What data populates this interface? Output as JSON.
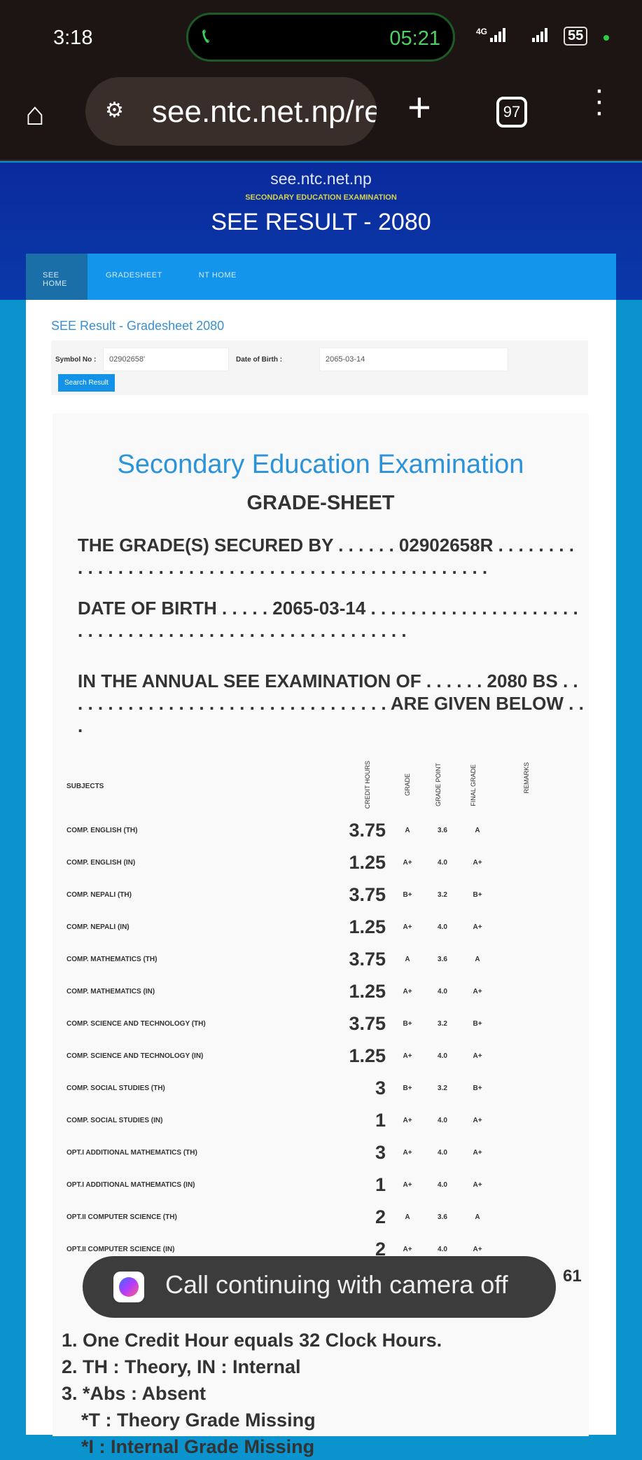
{
  "status_bar": {
    "time": "3:18",
    "call_timer": "05:21",
    "network": "4G",
    "battery": "55"
  },
  "browser": {
    "url": "see.ntc.net.np/re",
    "tab_count": "97"
  },
  "header": {
    "site": "see.ntc.net.np",
    "subtitle": "SECONDARY EDUCATION EXAMINATION",
    "title": "SEE RESULT - 2080"
  },
  "nav": {
    "items": [
      "SEE HOME",
      "GRADESHEET",
      "NT HOME"
    ]
  },
  "form": {
    "title": "SEE Result - Gradesheet 2080",
    "symbol_label": "Symbol No :",
    "symbol_value": "02902658'",
    "dob_label": "Date of Birth :",
    "dob_value": "2065-03-14",
    "search_label": "Search Result"
  },
  "sheet": {
    "title": "Secondary Education Examination",
    "subtitle": "GRADE-SHEET",
    "secured_by": "THE GRADE(S) SECURED BY . . . . . . 02902658R . . . . . . . . . . . . . . . . . . . . . . . . . . . . . . . . . . . . . . . . . . . . . . . . .",
    "dob": "DATE OF BIRTH . . . . . 2065-03-14 . . . . . . . . . . . . . . . . . . . . . . . . . . . . . . . . . . . . . . . . . . . . . . . . . . . . . .",
    "exam": "IN THE ANNUAL SEE EXAMINATION OF . . . . . . 2080 BS . . . . . . . . . . . . . . . . . . . . . . . . . . . . . . . . . ARE GIVEN BELOW . . .",
    "columns": [
      "SUBJECTS",
      "CREDIT HOURS",
      "GRADE",
      "GRADE POINT",
      "FINAL GRADE",
      "REMARKS"
    ],
    "rows": [
      [
        "COMP. ENGLISH (TH)",
        "3.75",
        "A",
        "3.6",
        "A"
      ],
      [
        "COMP. ENGLISH (IN)",
        "1.25",
        "A+",
        "4.0",
        "A+"
      ],
      [
        "COMP. NEPALI (TH)",
        "3.75",
        "B+",
        "3.2",
        "B+"
      ],
      [
        "COMP. NEPALI (IN)",
        "1.25",
        "A+",
        "4.0",
        "A+"
      ],
      [
        "COMP. MATHEMATICS (TH)",
        "3.75",
        "A",
        "3.6",
        "A"
      ],
      [
        "COMP. MATHEMATICS (IN)",
        "1.25",
        "A+",
        "4.0",
        "A+"
      ],
      [
        "COMP. SCIENCE AND TECHNOLOGY (TH)",
        "3.75",
        "B+",
        "3.2",
        "B+"
      ],
      [
        "COMP. SCIENCE AND TECHNOLOGY (IN)",
        "1.25",
        "A+",
        "4.0",
        "A+"
      ],
      [
        "COMP. SOCIAL STUDIES (TH)",
        "3",
        "B+",
        "3.2",
        "B+"
      ],
      [
        "COMP. SOCIAL STUDIES (IN)",
        "1",
        "A+",
        "4.0",
        "A+"
      ],
      [
        "OPT.I ADDITIONAL MATHEMATICS (TH)",
        "3",
        "A+",
        "4.0",
        "A+"
      ],
      [
        "OPT.I ADDITIONAL MATHEMATICS (IN)",
        "1",
        "A+",
        "4.0",
        "A+"
      ],
      [
        "OPT.II COMPUTER SCIENCE (TH)",
        "2",
        "A",
        "3.6",
        "A"
      ],
      [
        "OPT.II COMPUTER SCIENCE (IN)",
        "2",
        "A+",
        "4.0",
        "A+"
      ]
    ],
    "gpa_fragment": "61",
    "notes": [
      "1. One Credit Hour equals 32 Clock Hours.",
      "2. TH : Theory, IN : Internal",
      "3. *Abs : Absent",
      "*T : Theory Grade Missing",
      "*I : Internal Grade Missing"
    ]
  },
  "toast": {
    "text": "Call continuing with camera off"
  }
}
